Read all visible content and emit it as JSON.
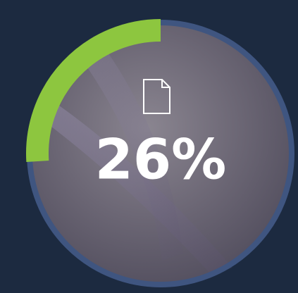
{
  "chart_data": {
    "type": "progress",
    "values": [
      26
    ],
    "value_labels": [
      "26%"
    ],
    "ylim": [
      0,
      100
    ],
    "color": "#8dc63f",
    "track_color": "#3f5580"
  }
}
